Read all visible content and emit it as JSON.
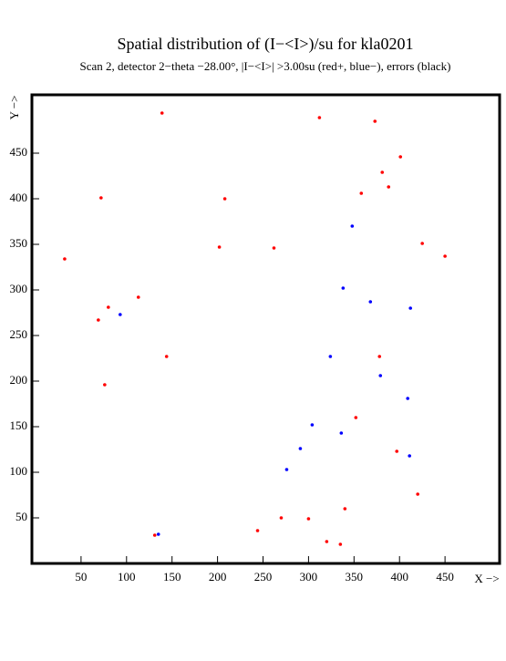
{
  "chart_data": {
    "type": "scatter",
    "title": "Spatial distribution of (I−<I>)/su for kla0201",
    "subtitle": "Scan  2, detector 2−theta −28.00°, |I−<I>| >3.00su (red+, blue−), errors (black)",
    "x_label": "X −>",
    "y_label": "Y −>",
    "xlim": [
      -4,
      510
    ],
    "ylim": [
      0,
      514
    ],
    "xticks": [
      50,
      100,
      150,
      200,
      250,
      300,
      350,
      400,
      450
    ],
    "yticks": [
      50,
      100,
      150,
      200,
      250,
      300,
      350,
      400,
      450
    ],
    "series": [
      {
        "color": "#ff0000",
        "x": [
          139,
          312,
          373,
          401,
          381,
          388,
          358,
          72,
          208,
          425,
          202,
          262,
          450,
          32,
          113,
          80,
          69,
          144,
          378,
          76,
          352,
          397,
          420,
          340,
          270,
          300,
          244,
          131,
          320,
          335
        ],
        "y": [
          494,
          489,
          485,
          446,
          429,
          413,
          406,
          401,
          400,
          351,
          347,
          346,
          337,
          334,
          292,
          281,
          267,
          227,
          227,
          196,
          160,
          123,
          76,
          60,
          50,
          49,
          36,
          31,
          24,
          21
        ]
      },
      {
        "color": "#0000ff",
        "x": [
          348,
          338,
          368,
          412,
          93,
          324,
          379,
          409,
          304,
          336,
          291,
          411,
          276,
          135
        ],
        "y": [
          370,
          302,
          287,
          280,
          273,
          227,
          206,
          181,
          152,
          143,
          126,
          118,
          103,
          32
        ]
      }
    ]
  }
}
